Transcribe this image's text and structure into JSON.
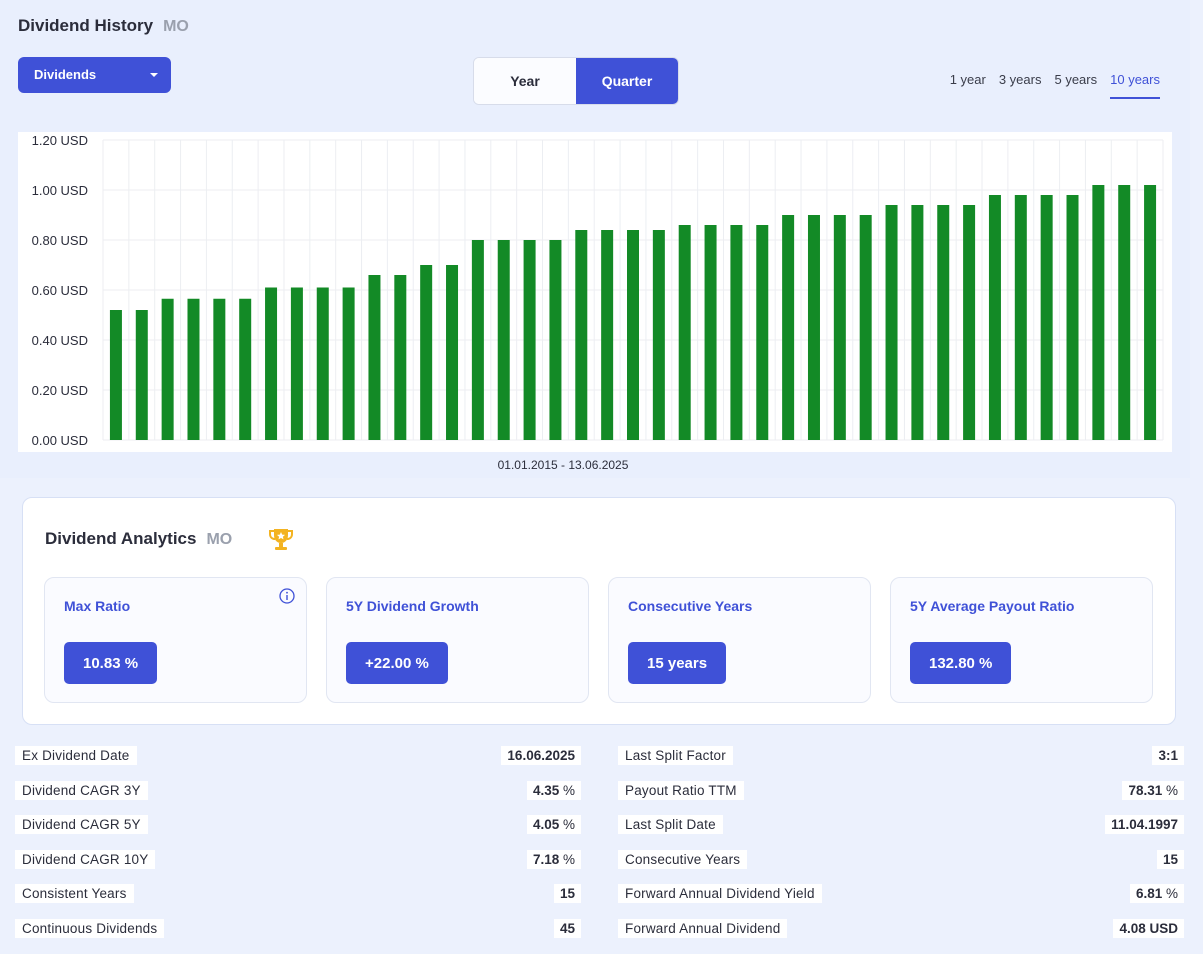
{
  "header": {
    "title": "Dividend History",
    "ticker": "MO"
  },
  "metric_select": {
    "value": "Dividends"
  },
  "period_toggle": {
    "year_label": "Year",
    "quarter_label": "Quarter",
    "selected": "Quarter"
  },
  "ranges": [
    "1 year",
    "3 years",
    "5 years",
    "10 years"
  ],
  "selected_range": "10 years",
  "date_range": "01.01.2015 - 13.06.2025",
  "colors": {
    "accent": "#3f51d7",
    "bar": "#138a26",
    "grid": "#eceef2"
  },
  "chart_data": {
    "type": "bar",
    "title": "",
    "xlabel": "01.01.2015 - 13.06.2025",
    "ylabel": "",
    "ylim": [
      0,
      1.2
    ],
    "yticks": [
      "0.00 USD",
      "0.20 USD",
      "0.40 USD",
      "0.60 USD",
      "0.80 USD",
      "1.00 USD",
      "1.20 USD"
    ],
    "grid": true,
    "values": [
      0.52,
      0.52,
      0.565,
      0.565,
      0.565,
      0.565,
      0.61,
      0.61,
      0.61,
      0.61,
      0.66,
      0.66,
      0.7,
      0.7,
      0.8,
      0.8,
      0.8,
      0.8,
      0.84,
      0.84,
      0.84,
      0.84,
      0.86,
      0.86,
      0.86,
      0.86,
      0.9,
      0.9,
      0.9,
      0.9,
      0.94,
      0.94,
      0.94,
      0.94,
      0.98,
      0.98,
      0.98,
      0.98,
      1.02,
      1.02,
      1.02
    ]
  },
  "analytics": {
    "title": "Dividend Analytics",
    "ticker": "MO",
    "cards": [
      {
        "label": "Max Ratio",
        "value": "10.83 %"
      },
      {
        "label": "5Y Dividend Growth",
        "value": "+22.00 %"
      },
      {
        "label": "Consecutive Years",
        "value": "15 years"
      },
      {
        "label": "5Y Average Payout Ratio",
        "value": "132.80 %"
      }
    ]
  },
  "stats_left": [
    {
      "label": "Ex Dividend Date",
      "value": "16.06.2025",
      "unit": ""
    },
    {
      "label": "Dividend CAGR 3Y",
      "value": "4.35",
      "unit": " %"
    },
    {
      "label": "Dividend CAGR 5Y",
      "value": "4.05",
      "unit": " %"
    },
    {
      "label": "Dividend CAGR 10Y",
      "value": "7.18",
      "unit": " %"
    },
    {
      "label": "Consistent Years",
      "value": "15",
      "unit": ""
    },
    {
      "label": "Continuous Dividends",
      "value": "45",
      "unit": ""
    }
  ],
  "stats_right": [
    {
      "label": "Last Split Factor",
      "value": "3:1",
      "unit": ""
    },
    {
      "label": "Payout Ratio TTM",
      "value": "78.31",
      "unit": " %"
    },
    {
      "label": "Last Split Date",
      "value": "11.04.1997",
      "unit": ""
    },
    {
      "label": "Consecutive Years",
      "value": "15",
      "unit": ""
    },
    {
      "label": "Forward Annual Dividend Yield",
      "value": "6.81",
      "unit": " %"
    },
    {
      "label": "Forward Annual Dividend",
      "value": "4.08 USD",
      "unit": ""
    }
  ]
}
